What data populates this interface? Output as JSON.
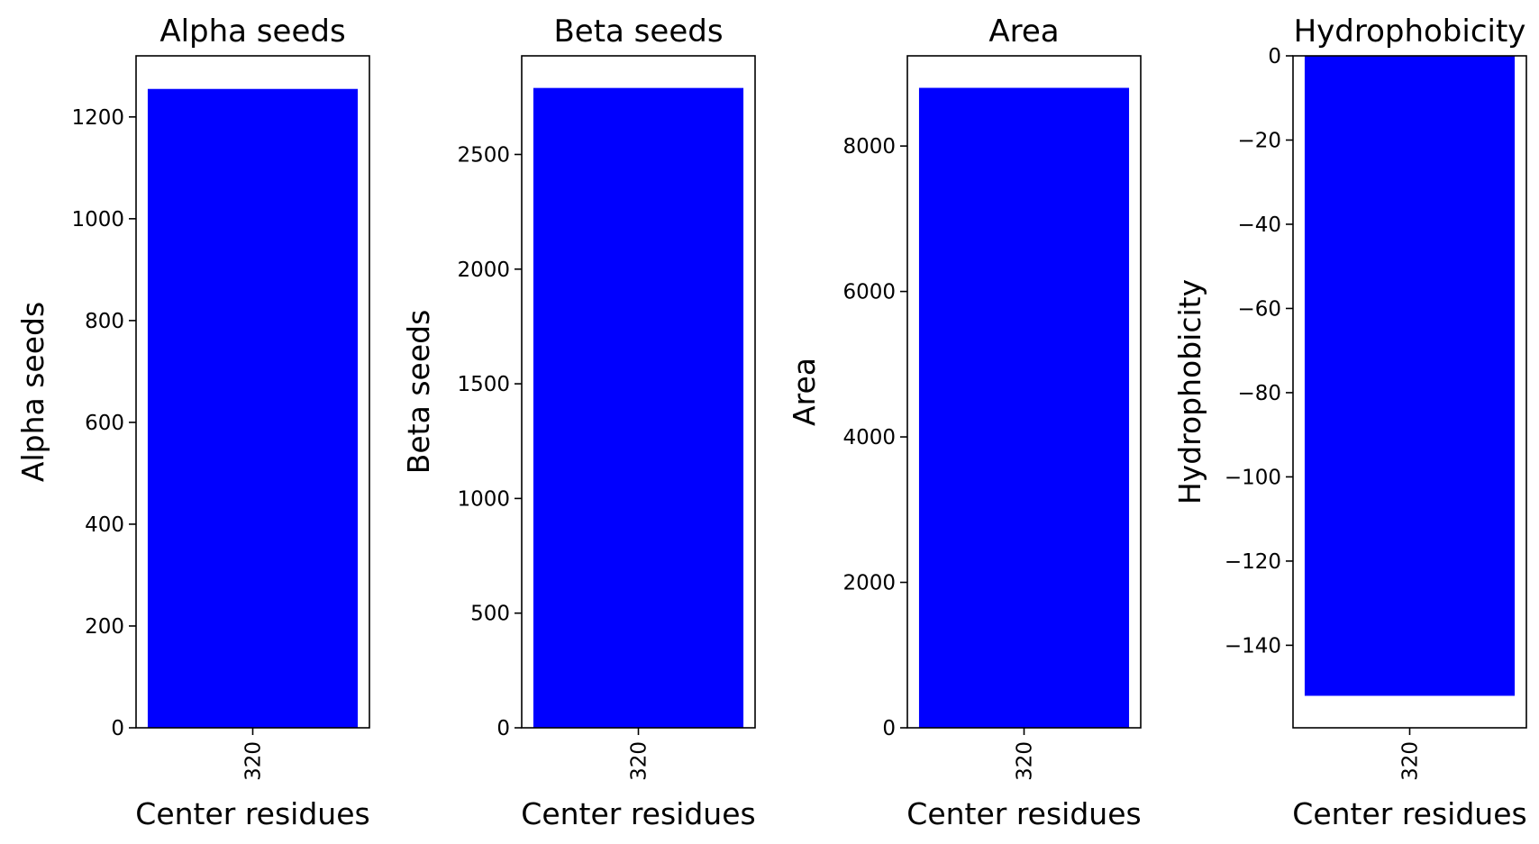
{
  "chart_data": [
    {
      "type": "bar",
      "title": "Alpha seeds",
      "xlabel": "Center residues",
      "ylabel": "Alpha seeds",
      "categories": [
        "320"
      ],
      "values": [
        1255
      ],
      "ylim": [
        0,
        1320
      ],
      "yticks": [
        0,
        200,
        400,
        600,
        800,
        1000,
        1200
      ],
      "bar_color": "#0000ff",
      "grid": false
    },
    {
      "type": "bar",
      "title": "Beta seeds",
      "xlabel": "Center residues",
      "ylabel": "Beta seeds",
      "categories": [
        "320"
      ],
      "values": [
        2790
      ],
      "ylim": [
        0,
        2930
      ],
      "yticks": [
        0,
        500,
        1000,
        1500,
        2000,
        2500
      ],
      "bar_color": "#0000ff",
      "grid": false
    },
    {
      "type": "bar",
      "title": "Area",
      "xlabel": "Center residues",
      "ylabel": "Area",
      "categories": [
        "320"
      ],
      "values": [
        8800
      ],
      "ylim": [
        0,
        9240
      ],
      "yticks": [
        0,
        2000,
        4000,
        6000,
        8000
      ],
      "bar_color": "#0000ff",
      "grid": false
    },
    {
      "type": "bar",
      "title": "Hydrophobicity",
      "xlabel": "Center residues",
      "ylabel": "Hydrophobicity",
      "categories": [
        "320"
      ],
      "values": [
        -152
      ],
      "ylim": [
        -159.6,
        0
      ],
      "yticks": [
        0,
        -20,
        -40,
        -60,
        -80,
        -100,
        -120,
        -140
      ],
      "bar_color": "#0000ff",
      "grid": false
    }
  ]
}
